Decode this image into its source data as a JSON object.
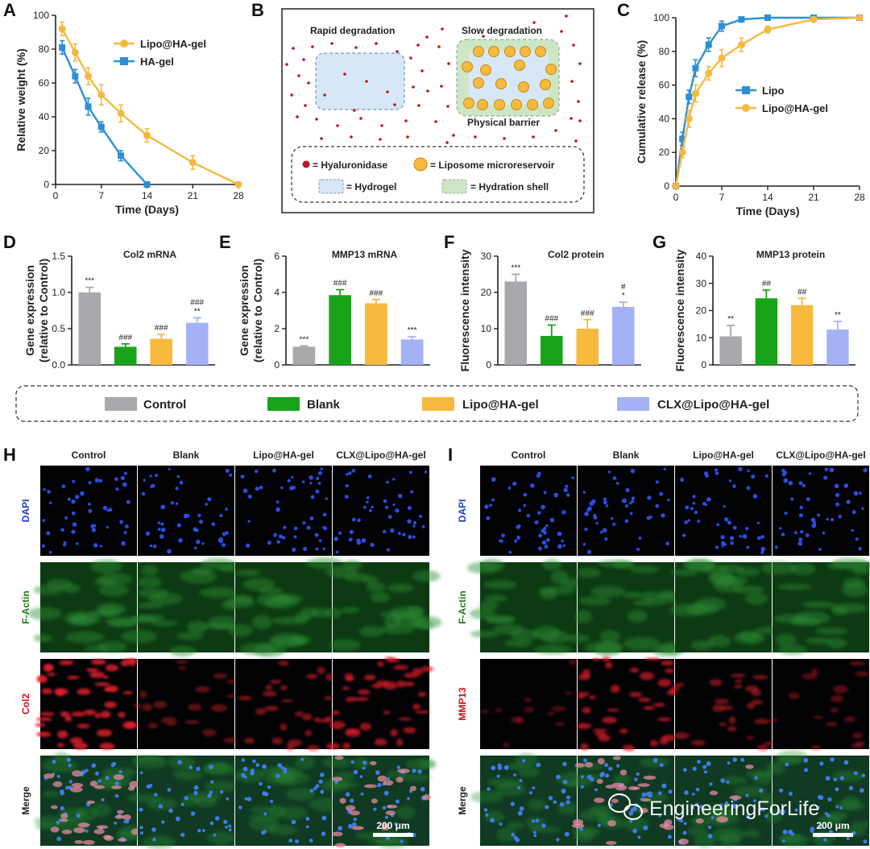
{
  "panels": {
    "A": "A",
    "B": "B",
    "C": "C",
    "D": "D",
    "E": "E",
    "F": "F",
    "G": "G",
    "H": "H",
    "I": "I"
  },
  "colors": {
    "orange": "#F5B942",
    "blue": "#2E8FD6",
    "gray": "#A9A9AD",
    "green": "#19A319",
    "yellow": "#F8B93F",
    "lavender": "#A4B2F5",
    "dapi": "#1E3CC8",
    "factin": "#1F7A1F",
    "red": "#C8141E",
    "dot": "#C0151F"
  },
  "chart_data": [
    {
      "id": "A",
      "type": "line",
      "xlabel": "Time (Days)",
      "ylabel": "Relative weight (%)",
      "xlim": [
        0,
        28
      ],
      "ylim": [
        0,
        100
      ],
      "xticks": [
        0,
        7,
        14,
        21,
        28
      ],
      "yticks": [
        0,
        20,
        40,
        60,
        80,
        100
      ],
      "legend_position": "top-right",
      "series": [
        {
          "name": "Lipo@HA-gel",
          "color": "#F5B942",
          "marker": "circle",
          "x": [
            1,
            3,
            5,
            7,
            10,
            14,
            21,
            28
          ],
          "y": [
            92,
            78,
            64,
            53,
            42,
            29,
            13,
            0
          ],
          "err": [
            4,
            5,
            5,
            6,
            5,
            4,
            4,
            0
          ]
        },
        {
          "name": "HA-gel",
          "color": "#2E8FD6",
          "marker": "square",
          "x": [
            1,
            3,
            5,
            7,
            10,
            14
          ],
          "y": [
            81,
            64,
            46,
            34,
            17,
            0
          ],
          "err": [
            4,
            4,
            5,
            3,
            3,
            0
          ]
        }
      ]
    },
    {
      "id": "C",
      "type": "line",
      "xlabel": "Time (Days)",
      "ylabel": "Cumulative release (%)",
      "xlim": [
        0,
        28
      ],
      "ylim": [
        0,
        100
      ],
      "xticks": [
        0,
        7,
        14,
        21,
        28
      ],
      "yticks": [
        0,
        20,
        40,
        60,
        80,
        100
      ],
      "legend_position": "center-right",
      "series": [
        {
          "name": "Lipo",
          "color": "#2E8FD6",
          "marker": "square",
          "x": [
            0,
            1,
            2,
            3,
            5,
            7,
            10,
            14,
            21,
            28
          ],
          "y": [
            0,
            28,
            53,
            70,
            84,
            95,
            99,
            100,
            100,
            100
          ],
          "err": [
            0,
            4,
            4,
            5,
            4,
            3,
            1,
            0,
            0,
            0
          ]
        },
        {
          "name": "Lipo@HA-gel",
          "color": "#F5B942",
          "marker": "circle",
          "x": [
            0,
            1,
            2,
            3,
            5,
            7,
            10,
            14,
            21,
            28
          ],
          "y": [
            0,
            20,
            40,
            55,
            67,
            76,
            84,
            93,
            99,
            100
          ],
          "err": [
            0,
            3,
            5,
            5,
            4,
            5,
            4,
            2,
            1,
            0
          ]
        }
      ]
    },
    {
      "id": "D",
      "type": "bar",
      "title": "Col2 mRNA",
      "ylabel": "Gene expression\n(relative to Control)",
      "categories": [
        "Control",
        "Blank",
        "Lipo@HA-gel",
        "CLX@Lipo@HA-gel"
      ],
      "ylim": [
        0,
        1.5
      ],
      "yticks": [
        "0.0",
        "0.5",
        "1.0",
        "1.5"
      ],
      "values": [
        1.0,
        0.25,
        0.36,
        0.58
      ],
      "err": [
        0.07,
        0.04,
        0.06,
        0.07
      ],
      "annotations": [
        "***",
        "###",
        "###",
        "###\n**"
      ]
    },
    {
      "id": "E",
      "type": "bar",
      "title": "MMP13 mRNA",
      "ylabel": "Gene expression\n(relative to Control)",
      "categories": [
        "Control",
        "Blank",
        "Lipo@HA-gel",
        "CLX@Lipo@HA-gel"
      ],
      "ylim": [
        0,
        6
      ],
      "yticks": [
        "0",
        "2",
        "4",
        "6"
      ],
      "values": [
        1.0,
        3.85,
        3.4,
        1.4
      ],
      "err": [
        0.05,
        0.3,
        0.2,
        0.15
      ],
      "annotations": [
        "***",
        "###",
        "###",
        "***"
      ]
    },
    {
      "id": "F",
      "type": "bar",
      "title": "Col2 protein",
      "ylabel": "Fluorescence intensity",
      "categories": [
        "Control",
        "Blank",
        "Lipo@HA-gel",
        "CLX@Lipo@HA-gel"
      ],
      "ylim": [
        0,
        30
      ],
      "yticks": [
        "0",
        "10",
        "20",
        "30"
      ],
      "values": [
        23,
        8,
        10,
        16
      ],
      "err": [
        2,
        3,
        2.5,
        1.3
      ],
      "annotations": [
        "***",
        "###",
        "###",
        "#\n*"
      ]
    },
    {
      "id": "G",
      "type": "bar",
      "title": "MMP13 protein",
      "ylabel": "Fluorescence intensity",
      "categories": [
        "Control",
        "Blank",
        "Lipo@HA-gel",
        "CLX@Lipo@HA-gel"
      ],
      "ylim": [
        0,
        40
      ],
      "yticks": [
        "0",
        "10",
        "20",
        "30",
        "40"
      ],
      "values": [
        10.5,
        24.5,
        22,
        13
      ],
      "err": [
        4,
        3,
        2.5,
        3
      ],
      "annotations": [
        "**",
        "##",
        "##",
        "**"
      ]
    }
  ],
  "bar_legend": [
    "Control",
    "Blank",
    "Lipo@HA-gel",
    "CLX@Lipo@HA-gel"
  ],
  "schematic": {
    "rapid": "Rapid degradation",
    "slow": "Slow degradation",
    "barrier": "Physical barrier",
    "key": {
      "hyaluronidase": "= Hyaluronidase",
      "liposome": "= Liposome microreservoir",
      "hydrogel": "= Hydrogel",
      "shell": "= Hydration shell"
    }
  },
  "images": {
    "columns": [
      "Control",
      "Blank",
      "Lipo@HA-gel",
      "CLX@Lipo@HA-gel"
    ],
    "rows_H": [
      "DAPI",
      "F-Actin",
      "Col2",
      "Merge"
    ],
    "rows_I": [
      "DAPI",
      "F-Actin",
      "MMP13",
      "Merge"
    ],
    "scale": "200 μm"
  },
  "watermark": "EngineeringForLife"
}
